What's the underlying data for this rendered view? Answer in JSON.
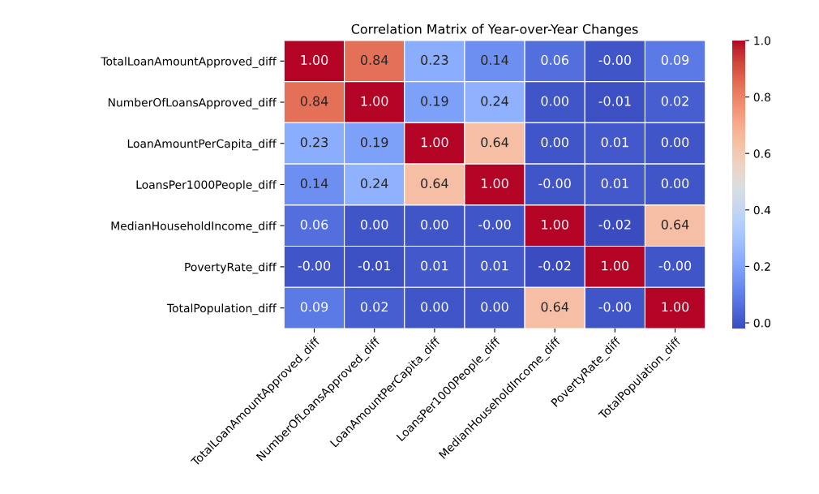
{
  "chart_data": {
    "type": "heatmap",
    "title": "Correlation Matrix of Year-over-Year Changes",
    "categories": [
      "TotalLoanAmountApproved_diff",
      "NumberOfLoansApproved_diff",
      "LoanAmountPerCapita_diff",
      "LoansPer1000People_diff",
      "MedianHouseholdIncome_diff",
      "PovertyRate_diff",
      "TotalPopulation_diff"
    ],
    "y_categories": [
      "TotalLoanAmountApproved_diff",
      "NumberOfLoansApproved_diff",
      "LoanAmountPerCapita_diff",
      "LoansPer1000People_diff",
      "MedianHouseholdIncome_diff",
      "PovertyRate_diff",
      "TotalPopulation_diff"
    ],
    "cells": [
      [
        1.0,
        0.84,
        0.23,
        0.14,
        0.06,
        0.0,
        0.09
      ],
      [
        0.84,
        1.0,
        0.19,
        0.24,
        0.0,
        -0.01,
        0.02
      ],
      [
        0.23,
        0.19,
        1.0,
        0.64,
        0.0,
        0.01,
        0.0
      ],
      [
        0.14,
        0.24,
        0.64,
        1.0,
        0.0,
        0.01,
        0.0
      ],
      [
        0.06,
        0.0,
        0.0,
        0.0,
        1.0,
        -0.02,
        0.64
      ],
      [
        0.0,
        -0.01,
        0.01,
        0.01,
        -0.02,
        1.0,
        0.0
      ],
      [
        0.09,
        0.02,
        0.0,
        0.0,
        0.64,
        0.0,
        1.0
      ]
    ],
    "cell_labels": [
      [
        "1.00",
        "0.84",
        "0.23",
        "0.14",
        "0.06",
        "-0.00",
        "0.09"
      ],
      [
        "0.84",
        "1.00",
        "0.19",
        "0.24",
        "0.00",
        "-0.01",
        "0.02"
      ],
      [
        "0.23",
        "0.19",
        "1.00",
        "0.64",
        "0.00",
        "0.01",
        "0.00"
      ],
      [
        "0.14",
        "0.24",
        "0.64",
        "1.00",
        "-0.00",
        "0.01",
        "0.00"
      ],
      [
        "0.06",
        "0.00",
        "0.00",
        "-0.00",
        "1.00",
        "-0.02",
        "0.64"
      ],
      [
        "-0.00",
        "-0.01",
        "0.01",
        "0.01",
        "-0.02",
        "1.00",
        "-0.00"
      ],
      [
        "0.09",
        "0.02",
        "0.00",
        "0.00",
        "0.64",
        "-0.00",
        "1.00"
      ]
    ],
    "clim": [
      -0.02,
      1.0
    ],
    "cticks": [
      {
        "value": 0,
        "label": "0.0"
      },
      {
        "value": 0.2,
        "label": "0.2"
      },
      {
        "value": 0.4,
        "label": "0.4"
      },
      {
        "value": 0.6,
        "label": "0.6"
      },
      {
        "value": 0.8,
        "label": "0.8"
      },
      {
        "value": 1,
        "label": "1.0"
      }
    ]
  }
}
